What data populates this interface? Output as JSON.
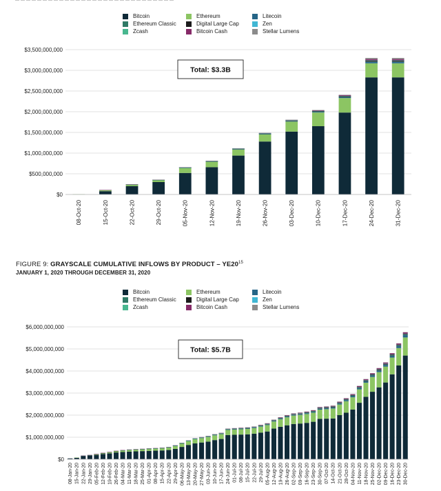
{
  "legend": {
    "items": [
      {
        "name": "Bitcoin",
        "color": "#0f2a38"
      },
      {
        "name": "Ethereum",
        "color": "#8cc563"
      },
      {
        "name": "Litecoin",
        "color": "#266587"
      },
      {
        "name": "Ethereum Classic",
        "color": "#2f7a66"
      },
      {
        "name": "Digital Large Cap",
        "color": "#1c1c1c"
      },
      {
        "name": "Zen",
        "color": "#41b7d4"
      },
      {
        "name": "Zcash",
        "color": "#48b78f"
      },
      {
        "name": "Bitcoin Cash",
        "color": "#862a68"
      },
      {
        "name": "Stellar Lumens",
        "color": "#8b8b8b"
      }
    ]
  },
  "figure9": {
    "number": "FIGURE 9: ",
    "title": "GRAYSCALE CUMULATIVE INFLOWS BY PRODUCT – YE20",
    "footnote": "15",
    "subtitle": "JANUARY 1, 2020 THROUGH DECEMBER 31, 2020"
  },
  "chart_data": [
    {
      "type": "bar",
      "stacked": true,
      "annotation": "Total: $3.3B",
      "ylim": [
        0,
        3500000000
      ],
      "yticks": [
        "$0",
        "$500,000,000",
        "$1,000,000,000",
        "$1,500,000,000",
        "$2,000,000,000",
        "$2,500,000,000",
        "$3,000,000,000",
        "$3,500,000,000"
      ],
      "grid": true,
      "legend_position": "top",
      "categories": [
        "08-Oct-20",
        "15-Oct-20",
        "22-Oct-20",
        "29-Oct-20",
        "05-Nov-20",
        "12-Nov-20",
        "19-Nov-20",
        "26-Nov-20",
        "03-Dec-20",
        "10-Dec-20",
        "17-Dec-20",
        "24-Dec-20",
        "31-Dec-20"
      ],
      "series": [
        {
          "name": "Bitcoin",
          "values": [
            5000000,
            80000000,
            200000000,
            300000000,
            520000000,
            660000000,
            940000000,
            1280000000,
            1520000000,
            1650000000,
            1980000000,
            2830000000,
            2830000000
          ]
        },
        {
          "name": "Ethereum",
          "values": [
            2000000,
            25000000,
            35000000,
            45000000,
            120000000,
            130000000,
            145000000,
            170000000,
            240000000,
            330000000,
            350000000,
            340000000,
            340000000
          ]
        },
        {
          "name": "Litecoin",
          "values": [
            0,
            1000000,
            2000000,
            3000000,
            4000000,
            5000000,
            8000000,
            10000000,
            12000000,
            15000000,
            20000000,
            35000000,
            35000000
          ]
        },
        {
          "name": "Ethereum Classic",
          "values": [
            0,
            1000000,
            2000000,
            2000000,
            3000000,
            4000000,
            4000000,
            5000000,
            5000000,
            6000000,
            6000000,
            8000000,
            8000000
          ]
        },
        {
          "name": "Digital Large Cap",
          "values": [
            0,
            1000000,
            3000000,
            3000000,
            5000000,
            6000000,
            8000000,
            10000000,
            13000000,
            16000000,
            20000000,
            25000000,
            25000000
          ]
        },
        {
          "name": "Zen",
          "values": [
            0,
            0,
            0,
            1000000,
            1000000,
            1000000,
            1000000,
            1000000,
            2000000,
            2000000,
            2000000,
            3000000,
            3000000
          ]
        },
        {
          "name": "Zcash",
          "values": [
            0,
            0,
            1000000,
            1000000,
            1000000,
            1000000,
            2000000,
            2000000,
            2000000,
            2000000,
            3000000,
            3000000,
            3000000
          ]
        },
        {
          "name": "Bitcoin Cash",
          "values": [
            0,
            1000000,
            2000000,
            2000000,
            3000000,
            4000000,
            5000000,
            6000000,
            8000000,
            12000000,
            18000000,
            28000000,
            28000000
          ]
        },
        {
          "name": "Stellar Lumens",
          "values": [
            0,
            0,
            1000000,
            2000000,
            3000000,
            4000000,
            4000000,
            5000000,
            6000000,
            8000000,
            10000000,
            28000000,
            28000000
          ]
        }
      ]
    },
    {
      "type": "bar",
      "stacked": true,
      "annotation": "Total: $5.7B",
      "ylim": [
        0,
        6000000000
      ],
      "yticks": [
        "$0",
        "$1,000,000,000",
        "$2,000,000,000",
        "$3,000,000,000",
        "$4,000,000,000",
        "$5,000,000,000",
        "$6,000,000,000"
      ],
      "grid": true,
      "legend_position": "top",
      "categories": [
        "08-Jan-20",
        "15-Jan-20",
        "22-Jan-20",
        "29-Jan-20",
        "05-Feb-20",
        "12-Feb-20",
        "19-Feb-20",
        "26-Feb-20",
        "04-Mar-20",
        "11-Mar-20",
        "18-Mar-20",
        "25-Mar-20",
        "01-Apr-20",
        "08-Apr-20",
        "15-Apr-20",
        "22-Apr-20",
        "29-Apr-20",
        "06-May-20",
        "13-May-20",
        "20-May-20",
        "27-May-20",
        "03-Jun-20",
        "10-Jun-20",
        "17-Jun-20",
        "24-Jun-20",
        "01-Jul-20",
        "08-Jul-20",
        "15-Jul-20",
        "22-Jul-20",
        "29-Jul-20",
        "05-Aug-20",
        "12-Aug-20",
        "19-Aug-20",
        "26-Aug-20",
        "02-Sep-20",
        "09-Sep-20",
        "16-Sep-20",
        "23-Sep-20",
        "30-Sep-20",
        "07-Oct-20",
        "14-Oct-20",
        "21-Oct-20",
        "28-Oct-20",
        "04-Nov-20",
        "11-Nov-20",
        "18-Nov-20",
        "25-Nov-20",
        "02-Dec-20",
        "09-Dec-20",
        "16-Dec-20",
        "23-Dec-20",
        "30-Dec-20"
      ],
      "series": [
        {
          "name": "Bitcoin",
          "values": [
            40000000,
            70000000,
            150000000,
            170000000,
            200000000,
            240000000,
            270000000,
            310000000,
            330000000,
            350000000,
            360000000,
            370000000,
            380000000,
            390000000,
            400000000,
            420000000,
            470000000,
            560000000,
            650000000,
            720000000,
            760000000,
            800000000,
            870000000,
            920000000,
            1100000000,
            1110000000,
            1120000000,
            1130000000,
            1160000000,
            1210000000,
            1260000000,
            1390000000,
            1470000000,
            1540000000,
            1600000000,
            1620000000,
            1650000000,
            1700000000,
            1830000000,
            1840000000,
            1850000000,
            2000000000,
            2110000000,
            2250000000,
            2560000000,
            2830000000,
            3060000000,
            3260000000,
            3480000000,
            3850000000,
            4250000000,
            4700000000
          ]
        },
        {
          "name": "Ethereum",
          "values": [
            0,
            5000000,
            10000000,
            20000000,
            30000000,
            40000000,
            50000000,
            60000000,
            70000000,
            75000000,
            80000000,
            85000000,
            90000000,
            95000000,
            100000000,
            110000000,
            130000000,
            150000000,
            170000000,
            190000000,
            200000000,
            210000000,
            215000000,
            220000000,
            230000000,
            235000000,
            240000000,
            245000000,
            250000000,
            270000000,
            290000000,
            320000000,
            340000000,
            360000000,
            380000000,
            390000000,
            400000000,
            410000000,
            420000000,
            430000000,
            450000000,
            480000000,
            520000000,
            560000000,
            610000000,
            640000000,
            670000000,
            690000000,
            720000000,
            760000000,
            790000000,
            820000000
          ]
        },
        {
          "name": "Litecoin",
          "values": [
            0,
            0,
            1000000,
            1000000,
            2000000,
            2000000,
            3000000,
            3000000,
            4000000,
            4000000,
            5000000,
            5000000,
            6000000,
            6000000,
            7000000,
            7000000,
            8000000,
            9000000,
            10000000,
            11000000,
            12000000,
            13000000,
            14000000,
            15000000,
            16000000,
            17000000,
            18000000,
            19000000,
            20000000,
            21000000,
            22000000,
            24000000,
            26000000,
            28000000,
            30000000,
            32000000,
            34000000,
            36000000,
            38000000,
            40000000,
            42000000,
            44000000,
            46000000,
            50000000,
            55000000,
            60000000,
            65000000,
            70000000,
            75000000,
            80000000,
            90000000,
            110000000
          ]
        },
        {
          "name": "Ethereum Classic",
          "values": [
            0,
            0,
            1000000,
            1000000,
            2000000,
            2000000,
            2000000,
            3000000,
            3000000,
            3000000,
            3000000,
            3000000,
            4000000,
            4000000,
            4000000,
            4000000,
            5000000,
            5000000,
            5000000,
            6000000,
            6000000,
            6000000,
            7000000,
            7000000,
            7000000,
            8000000,
            8000000,
            8000000,
            9000000,
            9000000,
            9000000,
            10000000,
            10000000,
            10000000,
            11000000,
            11000000,
            12000000,
            12000000,
            12000000,
            13000000,
            13000000,
            13000000,
            14000000,
            14000000,
            14000000,
            15000000,
            15000000,
            16000000,
            16000000,
            17000000,
            17000000,
            18000000
          ]
        },
        {
          "name": "Digital Large Cap",
          "values": [
            0,
            0,
            0,
            0,
            1000000,
            1000000,
            1000000,
            1000000,
            2000000,
            2000000,
            2000000,
            2000000,
            3000000,
            3000000,
            3000000,
            4000000,
            5000000,
            6000000,
            7000000,
            8000000,
            9000000,
            10000000,
            11000000,
            12000000,
            13000000,
            14000000,
            15000000,
            16000000,
            17000000,
            18000000,
            19000000,
            20000000,
            21000000,
            22000000,
            23000000,
            24000000,
            25000000,
            26000000,
            27000000,
            28000000,
            29000000,
            30000000,
            31000000,
            32000000,
            33000000,
            34000000,
            35000000,
            36000000,
            37000000,
            38000000,
            39000000,
            40000000
          ]
        },
        {
          "name": "Zen",
          "values": [
            0,
            0,
            0,
            0,
            0,
            0,
            0,
            0,
            0,
            0,
            0,
            0,
            0,
            0,
            0,
            0,
            1000000,
            1000000,
            1000000,
            1000000,
            1000000,
            1000000,
            1000000,
            1000000,
            1000000,
            1000000,
            1000000,
            1000000,
            1000000,
            1000000,
            1000000,
            1000000,
            2000000,
            2000000,
            2000000,
            2000000,
            2000000,
            2000000,
            2000000,
            2000000,
            2000000,
            2000000,
            2000000,
            2000000,
            2000000,
            2000000,
            3000000,
            3000000,
            3000000,
            3000000,
            3000000,
            3000000
          ]
        },
        {
          "name": "Zcash",
          "values": [
            0,
            0,
            0,
            0,
            0,
            0,
            0,
            0,
            1000000,
            1000000,
            1000000,
            1000000,
            1000000,
            1000000,
            1000000,
            1000000,
            1000000,
            1000000,
            1000000,
            1000000,
            1000000,
            1000000,
            2000000,
            2000000,
            2000000,
            2000000,
            2000000,
            2000000,
            2000000,
            2000000,
            2000000,
            2000000,
            2000000,
            2000000,
            2000000,
            2000000,
            2000000,
            2000000,
            2000000,
            2000000,
            3000000,
            3000000,
            3000000,
            3000000,
            3000000,
            3000000,
            3000000,
            3000000,
            3000000,
            3000000,
            3000000,
            3000000
          ]
        },
        {
          "name": "Bitcoin Cash",
          "values": [
            0,
            0,
            2000000,
            2000000,
            4000000,
            5000000,
            6000000,
            7000000,
            8000000,
            9000000,
            10000000,
            10000000,
            11000000,
            11000000,
            12000000,
            12000000,
            13000000,
            14000000,
            15000000,
            16000000,
            17000000,
            18000000,
            19000000,
            20000000,
            21000000,
            22000000,
            23000000,
            24000000,
            25000000,
            26000000,
            27000000,
            28000000,
            29000000,
            30000000,
            31000000,
            32000000,
            33000000,
            34000000,
            35000000,
            36000000,
            37000000,
            38000000,
            40000000,
            42000000,
            44000000,
            46000000,
            48000000,
            50000000,
            52000000,
            54000000,
            56000000,
            58000000
          ]
        },
        {
          "name": "Stellar Lumens",
          "values": [
            0,
            0,
            0,
            0,
            0,
            0,
            0,
            0,
            0,
            0,
            0,
            0,
            0,
            0,
            0,
            0,
            1000000,
            1000000,
            1000000,
            1000000,
            1000000,
            1000000,
            1000000,
            1000000,
            1000000,
            2000000,
            2000000,
            2000000,
            2000000,
            2000000,
            2000000,
            2000000,
            2000000,
            3000000,
            3000000,
            3000000,
            3000000,
            3000000,
            3000000,
            4000000,
            4000000,
            4000000,
            4000000,
            5000000,
            5000000,
            5000000,
            6000000,
            6000000,
            7000000,
            7000000,
            8000000,
            9000000
          ]
        }
      ]
    }
  ]
}
